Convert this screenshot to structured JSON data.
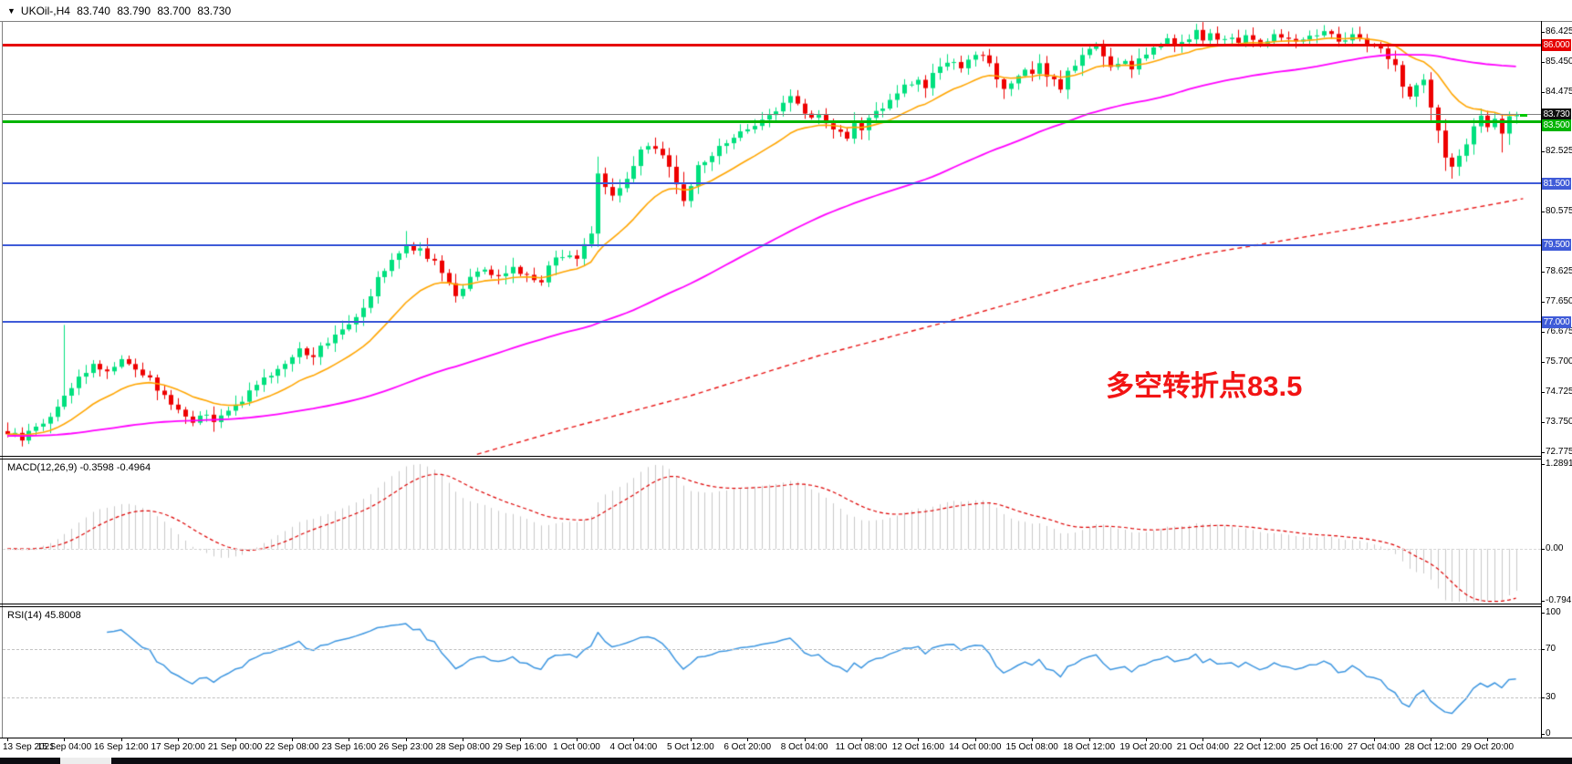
{
  "window": {
    "header": {
      "expander": "▼",
      "symbol": "UKOil-,H4",
      "open": "83.740",
      "high": "83.790",
      "low": "83.700",
      "close": "83.730"
    }
  },
  "annotation": {
    "text": "多空转折点83.5"
  },
  "price_axis": {
    "ticks": [
      "86.425",
      "85.450",
      "84.475",
      "82.525",
      "80.575",
      "78.625",
      "77.650",
      "76.675",
      "75.700",
      "74.725",
      "73.750",
      "72.775"
    ],
    "badges": [
      {
        "text": "86.000",
        "price": 86.0,
        "bg": "#e60000",
        "role": "resistance-line-tag"
      },
      {
        "text": "83.730",
        "price": 83.73,
        "bg": "#101010",
        "role": "last-price-tag"
      },
      {
        "text": "83.500",
        "price": 83.5,
        "bg": "#00b400",
        "role": "pivot-line-tag"
      },
      {
        "text": "81.500",
        "price": 81.5,
        "bg": "#3f5bd8",
        "role": "support-line-tag"
      },
      {
        "text": "79.500",
        "price": 79.5,
        "bg": "#3f5bd8",
        "role": "support-line-tag"
      },
      {
        "text": "77.000",
        "price": 77.0,
        "bg": "#3f5bd8",
        "role": "support-line-tag"
      }
    ]
  },
  "hlines": [
    {
      "price": 86.0,
      "color": "#e60000",
      "width": 3
    },
    {
      "price": 83.5,
      "color": "#00b400",
      "width": 3
    },
    {
      "price": 83.73,
      "color": "#808080",
      "width": 1
    },
    {
      "price": 81.5,
      "color": "#3f5bd8",
      "width": 2
    },
    {
      "price": 79.5,
      "color": "#3f5bd8",
      "width": 2
    },
    {
      "price": 77.0,
      "color": "#3f5bd8",
      "width": 2
    }
  ],
  "indicators": {
    "macd": {
      "label": "MACD(12,26,9)",
      "values": "-0.3598 -0.4964",
      "axis_labels": [
        "1.2891",
        "0.00",
        "-0.7941"
      ]
    },
    "rsi": {
      "label": "RSI(14)",
      "value": "45.8008",
      "axis_labels": [
        "100",
        "70",
        "30",
        "0"
      ],
      "levels": [
        70,
        30
      ]
    }
  },
  "chart_data": {
    "type": "candlestick",
    "symbol": "UKOil-",
    "timeframe": "H4",
    "title": "UKOil-,H4 83.740 83.790 83.700 83.730",
    "price_range": [
      72.775,
      86.425
    ],
    "n_bars": 213,
    "bars_per_x_tick": 8,
    "x_labels": [
      "13 Sep 2021",
      "15 Sep 04:00",
      "16 Sep 12:00",
      "17 Sep 20:00",
      "21 Sep 00:00",
      "22 Sep 08:00",
      "23 Sep 16:00",
      "26 Sep 23:00",
      "28 Sep 08:00",
      "29 Sep 16:00",
      "1 Oct 00:00",
      "4 Oct 04:00",
      "5 Oct 12:00",
      "6 Oct 20:00",
      "8 Oct 04:00",
      "11 Oct 08:00",
      "12 Oct 16:00",
      "14 Oct 00:00",
      "15 Oct 08:00",
      "18 Oct 12:00",
      "19 Oct 20:00",
      "21 Oct 04:00",
      "22 Oct 12:00",
      "25 Oct 16:00",
      "27 Oct 04:00",
      "28 Oct 12:00",
      "29 Oct 20:00"
    ],
    "last_bar": {
      "open": 83.74,
      "high": 83.79,
      "low": 83.7,
      "close": 83.73
    },
    "close_anchors": [
      [
        0,
        73.4
      ],
      [
        2,
        73.2
      ],
      [
        4,
        73.6
      ],
      [
        6,
        73.9
      ],
      [
        8,
        74.6
      ],
      [
        10,
        75.2
      ],
      [
        12,
        75.6
      ],
      [
        14,
        75.4
      ],
      [
        16,
        75.8
      ],
      [
        18,
        75.5
      ],
      [
        20,
        75.1
      ],
      [
        22,
        74.6
      ],
      [
        24,
        74.1
      ],
      [
        26,
        73.8
      ],
      [
        28,
        74.0
      ],
      [
        29,
        73.7
      ],
      [
        31,
        74.1
      ],
      [
        33,
        74.5
      ],
      [
        35,
        74.9
      ],
      [
        37,
        75.3
      ],
      [
        39,
        75.7
      ],
      [
        41,
        76.1
      ],
      [
        43,
        75.9
      ],
      [
        45,
        76.4
      ],
      [
        47,
        76.8
      ],
      [
        49,
        77.2
      ],
      [
        51,
        77.9
      ],
      [
        52,
        78.5
      ],
      [
        54,
        79.0
      ],
      [
        56,
        79.45
      ],
      [
        58,
        79.35
      ],
      [
        60,
        78.9
      ],
      [
        62,
        78.3
      ],
      [
        63,
        77.9
      ],
      [
        65,
        78.4
      ],
      [
        67,
        78.7
      ],
      [
        69,
        78.4
      ],
      [
        71,
        78.8
      ],
      [
        73,
        78.5
      ],
      [
        75,
        78.3
      ],
      [
        76,
        78.9
      ],
      [
        78,
        79.2
      ],
      [
        80,
        79.1
      ],
      [
        82,
        79.9
      ],
      [
        83,
        81.9
      ],
      [
        84,
        81.4
      ],
      [
        85,
        81.1
      ],
      [
        86,
        81.3
      ],
      [
        87,
        81.6
      ],
      [
        88,
        82.0
      ],
      [
        89,
        82.5
      ],
      [
        90,
        82.8
      ],
      [
        92,
        82.4
      ],
      [
        93,
        82.0
      ],
      [
        94,
        81.5
      ],
      [
        95,
        81.0
      ],
      [
        96,
        81.5
      ],
      [
        97,
        82.0
      ],
      [
        99,
        82.4
      ],
      [
        100,
        82.7
      ],
      [
        102,
        83.0
      ],
      [
        104,
        83.3
      ],
      [
        106,
        83.6
      ],
      [
        108,
        83.8
      ],
      [
        110,
        84.3
      ],
      [
        111,
        84.0
      ],
      [
        113,
        83.6
      ],
      [
        114,
        83.8
      ],
      [
        115,
        83.5
      ],
      [
        116,
        83.2
      ],
      [
        118,
        83.0
      ],
      [
        119,
        83.4
      ],
      [
        120,
        83.2
      ],
      [
        121,
        83.7
      ],
      [
        123,
        83.9
      ],
      [
        124,
        84.2
      ],
      [
        125,
        84.4
      ],
      [
        126,
        84.7
      ],
      [
        128,
        84.9
      ],
      [
        129,
        84.6
      ],
      [
        130,
        85.0
      ],
      [
        131,
        85.2
      ],
      [
        133,
        85.5
      ],
      [
        134,
        85.2
      ],
      [
        135,
        85.6
      ],
      [
        137,
        85.7
      ],
      [
        138,
        85.3
      ],
      [
        139,
        84.8
      ],
      [
        140,
        84.5
      ],
      [
        142,
        84.9
      ],
      [
        143,
        85.2
      ],
      [
        144,
        85.0
      ],
      [
        145,
        85.3
      ],
      [
        147,
        84.8
      ],
      [
        148,
        84.6
      ],
      [
        149,
        85.1
      ],
      [
        150,
        85.4
      ],
      [
        152,
        85.8
      ],
      [
        153,
        86.0
      ],
      [
        154,
        85.6
      ],
      [
        155,
        85.3
      ],
      [
        157,
        85.5
      ],
      [
        158,
        85.2
      ],
      [
        159,
        85.6
      ],
      [
        161,
        85.9
      ],
      [
        162,
        86.0
      ],
      [
        163,
        86.2
      ],
      [
        164,
        86.0
      ],
      [
        166,
        86.25
      ],
      [
        167,
        86.4
      ],
      [
        168,
        86.15
      ],
      [
        169,
        86.3
      ],
      [
        171,
        86.1
      ],
      [
        172,
        86.3
      ],
      [
        173,
        86.1
      ],
      [
        174,
        86.25
      ],
      [
        176,
        86.0
      ],
      [
        177,
        86.2
      ],
      [
        179,
        86.3
      ],
      [
        181,
        86.1
      ],
      [
        183,
        86.25
      ],
      [
        185,
        86.4
      ],
      [
        187,
        86.15
      ],
      [
        189,
        86.3
      ],
      [
        191,
        86.0
      ],
      [
        193,
        85.9
      ],
      [
        195,
        85.3
      ],
      [
        196,
        84.6
      ],
      [
        197,
        84.4
      ],
      [
        198,
        84.7
      ],
      [
        199,
        84.9
      ],
      [
        200,
        84.0
      ],
      [
        201,
        83.2
      ],
      [
        202,
        82.4
      ],
      [
        203,
        82.1
      ],
      [
        204,
        82.3
      ],
      [
        205,
        82.8
      ],
      [
        206,
        83.4
      ],
      [
        207,
        83.6
      ],
      [
        208,
        83.3
      ],
      [
        209,
        83.5
      ],
      [
        210,
        83.1
      ],
      [
        211,
        83.6
      ],
      [
        212,
        83.73
      ]
    ],
    "wick_spikes": [
      [
        8,
        "high",
        76.9
      ],
      [
        56,
        "high",
        79.95
      ],
      [
        95,
        "low",
        80.75
      ],
      [
        110,
        "high",
        84.55
      ],
      [
        203,
        "low",
        81.65
      ],
      [
        210,
        "low",
        82.5
      ]
    ],
    "overlays": [
      {
        "name": "ma-fast",
        "type": "ema",
        "period": 16,
        "color": "#ffa500"
      },
      {
        "name": "ma-mid",
        "type": "sma",
        "period": 70,
        "prehistory": 73.3,
        "color": "#ff00ff"
      },
      {
        "name": "ma-slow",
        "type": "anchored-line",
        "dashed": true,
        "color": "#e81414",
        "anchors": [
          [
            66,
            72.7
          ],
          [
            78,
            73.5
          ],
          [
            96,
            74.6
          ],
          [
            114,
            75.9
          ],
          [
            132,
            77.0
          ],
          [
            150,
            78.2
          ],
          [
            168,
            79.2
          ],
          [
            186,
            79.9
          ],
          [
            199,
            80.4
          ],
          [
            213,
            81.0
          ]
        ]
      }
    ],
    "subcharts": [
      {
        "name": "macd",
        "type": "bar+line",
        "params": "12,26,9",
        "current": [
          -0.3598,
          -0.4964
        ],
        "ylim": [
          -0.7941,
          1.2891
        ]
      },
      {
        "name": "rsi",
        "type": "line",
        "params": "14",
        "current": 45.8008,
        "ylim": [
          0,
          100
        ],
        "levels": [
          70,
          30
        ]
      }
    ]
  },
  "colors": {
    "up_candle": "#00e07e",
    "down_candle": "#ee0000",
    "ma_fast": "#ffa500",
    "ma_mid": "#ff00ff",
    "ma_slow": "#e81414",
    "macd_hist": "#c9c9c9",
    "macd_signal": "#dd0000",
    "rsi_line": "#3d96e0",
    "annotation": "#f21414",
    "axis_text": "#000000"
  }
}
